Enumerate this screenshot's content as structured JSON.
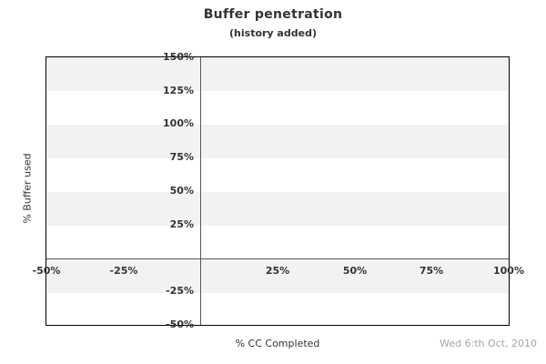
{
  "header": {
    "title": "Buffer penetration",
    "subtitle": "(history added)"
  },
  "footer": {
    "date": "Wed 6:th Oct, 2010"
  },
  "chart_data": {
    "type": "scatter",
    "title": "Buffer penetration",
    "subtitle": "(history added)",
    "xlabel": "% CC Completed",
    "ylabel": "% Buffer used",
    "xlim": [
      -50,
      100
    ],
    "ylim": [
      -50,
      150
    ],
    "x_tick_values": [
      -50,
      -25,
      25,
      50,
      75,
      100
    ],
    "x_tick_labels": [
      "-50%",
      "-25%",
      "25%",
      "50%",
      "75%",
      "100%"
    ],
    "y_tick_values": [
      150,
      125,
      100,
      75,
      50,
      25,
      -25,
      -50
    ],
    "y_tick_labels": [
      "150%",
      "125%",
      "100%",
      "75%",
      "50%",
      "25%",
      "-25%",
      "-50%"
    ],
    "series": [],
    "grid": "alternating-horizontal-bands-25pct",
    "gray_band_ranges": [
      [
        150,
        125
      ],
      [
        100,
        75
      ],
      [
        50,
        25
      ],
      [
        0,
        -25
      ]
    ],
    "legend": "none",
    "colors": {
      "background": "#ffffff",
      "band_fill": "#f2f2f2",
      "plot_border": "#000000",
      "zero_axis_line": "#595959",
      "text": "#333333",
      "date_text": "#a6a6a6"
    }
  }
}
